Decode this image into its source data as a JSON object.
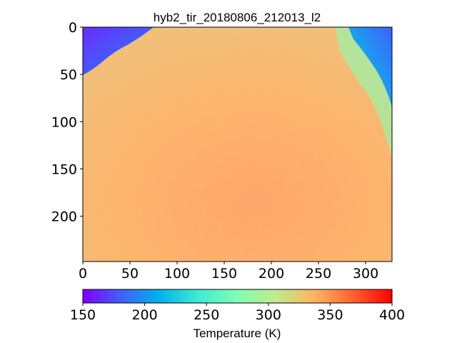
{
  "chart_data": {
    "type": "heatmap",
    "title": "hyb2_tir_20180806_212013_l2",
    "xlabel": "",
    "ylabel": "",
    "xlim": [
      0,
      328
    ],
    "ylim": [
      248,
      0
    ],
    "x_ticks": [
      0,
      50,
      100,
      150,
      200,
      250,
      300
    ],
    "y_ticks": [
      0,
      50,
      100,
      150,
      200
    ],
    "colorbar": {
      "label": "Temperature (K)",
      "range": [
        150,
        400
      ],
      "ticks": [
        150,
        200,
        250,
        300,
        350,
        400
      ],
      "colormap": "rainbow",
      "orientation": "horizontal"
    },
    "regions": [
      {
        "name": "sky-upper-left",
        "temperature": 160
      },
      {
        "name": "sky-upper-right",
        "temperature": 175
      },
      {
        "name": "limb-edge",
        "temperature": 280
      },
      {
        "name": "surface",
        "temperature": 335
      },
      {
        "name": "surface-warm",
        "temperature": 345
      }
    ]
  }
}
